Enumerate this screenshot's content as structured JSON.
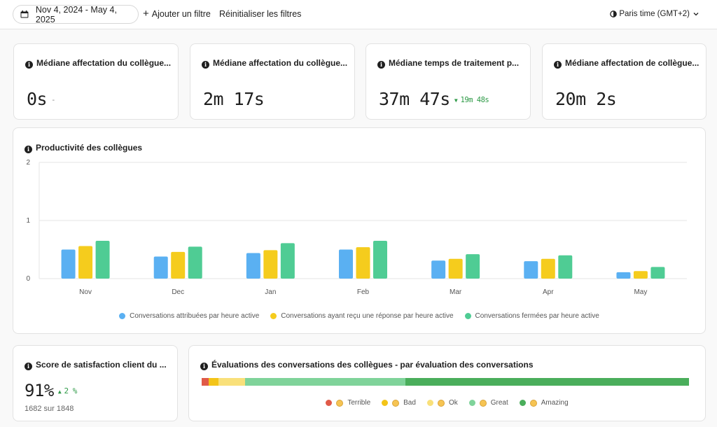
{
  "topbar": {
    "date_range": "Nov 4, 2024 - May 4, 2025",
    "add_filter": "Ajouter un filtre",
    "reset_filters": "Réinitialiser les filtres",
    "timezone": "Paris time (GMT+2)"
  },
  "metrics": [
    {
      "title": "Médiane affectation du collègue...",
      "value": "0s",
      "delta": "-",
      "delta_type": "neutral"
    },
    {
      "title": "Médiane affectation du collègue...",
      "value": "2m 17s",
      "delta": "",
      "delta_type": "none"
    },
    {
      "title": "Médiane temps de traitement p...",
      "value": "37m 47s",
      "delta": "19m 48s",
      "delta_type": "down-good"
    },
    {
      "title": "Médiane affectation de collègue...",
      "value": "20m 2s",
      "delta": "",
      "delta_type": "none"
    }
  ],
  "productivity": {
    "title": "Productivité des collègues"
  },
  "chart_data": {
    "type": "bar",
    "title": "Productivité des collègues",
    "categories": [
      "Nov",
      "Dec",
      "Jan",
      "Feb",
      "Mar",
      "Apr",
      "May"
    ],
    "y_ticks": [
      "0",
      "1",
      "2"
    ],
    "ylim": [
      0,
      2
    ],
    "grid": true,
    "legend_position": "bottom",
    "series": [
      {
        "name": "Conversations attribuées par heure active",
        "color": "#5ab0f2",
        "values": [
          0.5,
          0.38,
          0.44,
          0.5,
          0.31,
          0.3,
          0.11
        ]
      },
      {
        "name": "Conversations ayant reçu une réponse par heure active",
        "color": "#f5cc1d",
        "values": [
          0.56,
          0.46,
          0.49,
          0.54,
          0.34,
          0.34,
          0.13
        ]
      },
      {
        "name": "Conversations fermées par heure active",
        "color": "#4fcc94",
        "values": [
          0.65,
          0.55,
          0.61,
          0.65,
          0.42,
          0.4,
          0.2
        ]
      }
    ]
  },
  "satisfaction": {
    "title": "Score de satisfaction client du ...",
    "value": "91%",
    "delta": "2 %",
    "sub": "1682 sur 1848"
  },
  "ratings": {
    "title": "Évaluations des conversations des collègues - par évaluation des conversations",
    "segments": [
      {
        "label": "Terrible",
        "color": "#e05a48",
        "share": 0.015
      },
      {
        "label": "Bad",
        "color": "#f3c418",
        "share": 0.02
      },
      {
        "label": "Ok",
        "color": "#f9e07a",
        "share": 0.054
      },
      {
        "label": "Great",
        "color": "#7fd39a",
        "share": 0.329
      },
      {
        "label": "Amazing",
        "color": "#4aae5b",
        "share": 0.582
      }
    ]
  }
}
